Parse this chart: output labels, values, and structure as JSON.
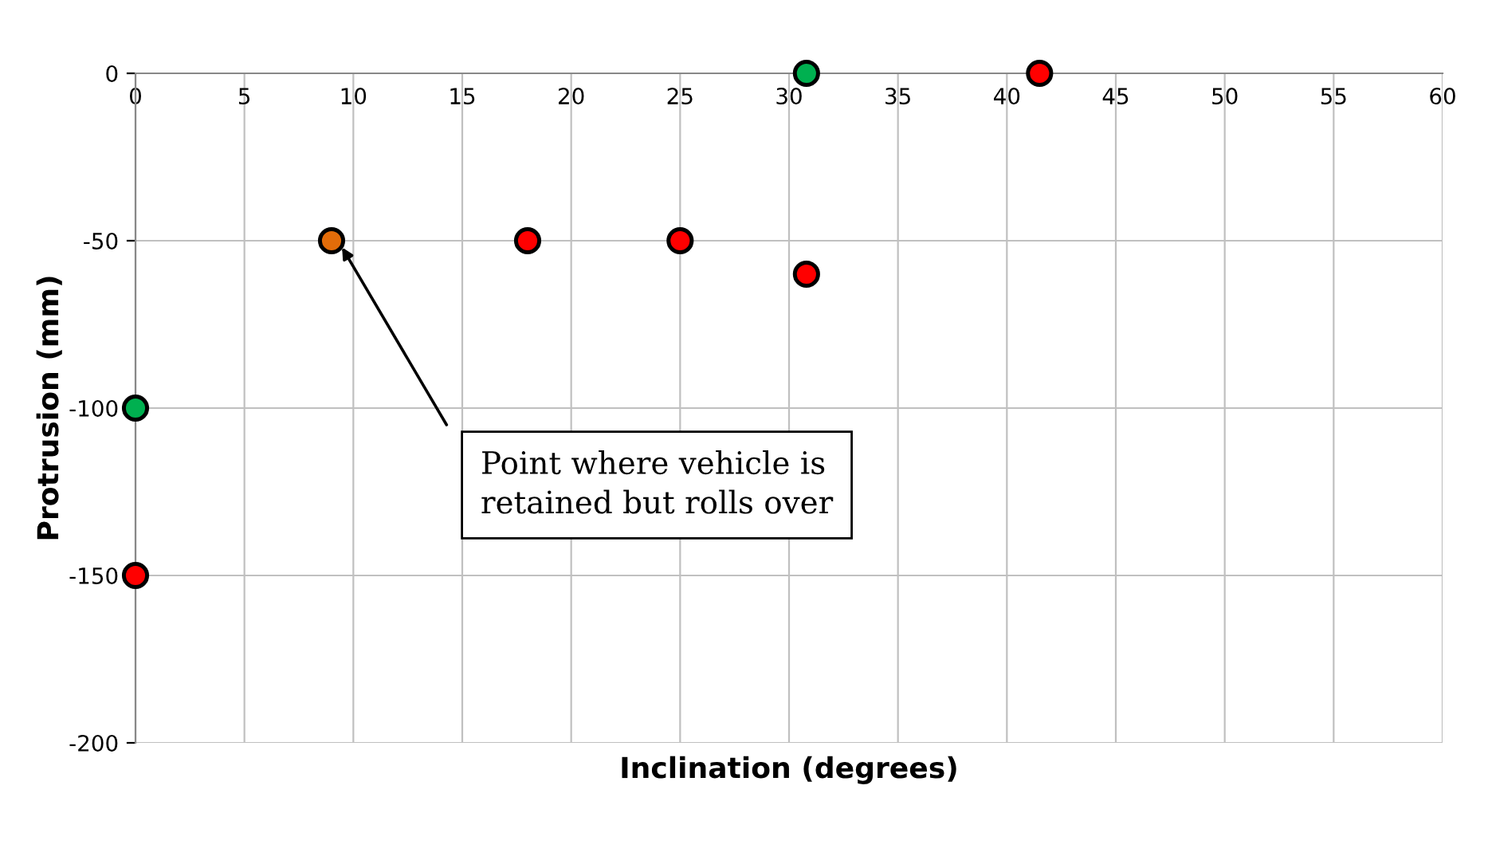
{
  "chart_data": {
    "type": "scatter",
    "xlabel": "Inclination (degrees)",
    "ylabel": "Protrusion (mm)",
    "series": [
      {
        "color": "#00b050",
        "x": [
          30.8,
          0
        ],
        "values": [
          0,
          -100
        ]
      },
      {
        "color": "#ff0000",
        "x": [
          41.5,
          18,
          25,
          30.8,
          0
        ],
        "values": [
          0,
          -50,
          -50,
          -60,
          -150
        ]
      },
      {
        "color": "#e36c09",
        "x": [
          9
        ],
        "values": [
          -50
        ]
      }
    ],
    "annotations": [
      "Point where vehicle is\nretained but rolls over"
    ],
    "xlim": [
      0,
      60
    ],
    "xticks": [
      0,
      5,
      10,
      15,
      20,
      25,
      30,
      35,
      40,
      45,
      50,
      55,
      60
    ],
    "ylim": [
      -200,
      0
    ],
    "yticks": [
      -200,
      -150,
      -100,
      -50,
      0
    ],
    "grid": true,
    "marker": "circle"
  }
}
